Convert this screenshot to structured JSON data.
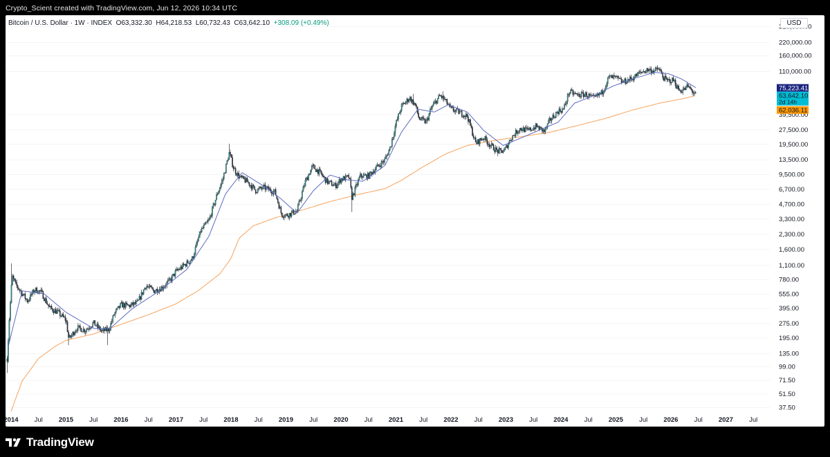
{
  "header": {
    "credit": "Crypto_Scient created with TradingView.com, Jun 12, 2026 10:34 UTC"
  },
  "legend": {
    "symbol": "Bitcoin / U.S. Dollar · 1W · INDEX",
    "open": "O63,332.30",
    "high": "H64,218.53",
    "low": "L60,732.43",
    "close": "C63,642.10",
    "change": "+308.09 (+0.49%)"
  },
  "currency_label": "USD",
  "footer": {
    "brand": "TradingView"
  },
  "colors": {
    "candle_up": "#2a2e39",
    "candle_down": "#2a2e39",
    "candle_up_fill": "#26a69a",
    "ma_blue": "#5c6bc0",
    "ma_orange": "#f7a35c",
    "badge_navy": "#1a237e",
    "badge_cyan": "#00bcd4",
    "badge_orange": "#ff9800"
  },
  "chart_data": {
    "type": "line",
    "series_label": "",
    "y_scale": "log",
    "ylim": [
      32,
      420000
    ],
    "xlim": [
      2013.9,
      2027.8
    ],
    "y_ticks": [
      {
        "v": 320000,
        "label": "320,000.00"
      },
      {
        "v": 220000,
        "label": "220,000.00"
      },
      {
        "v": 160000,
        "label": "160,000.00"
      },
      {
        "v": 110000,
        "label": "110,000.00"
      },
      {
        "v": 39500,
        "label": "39,500.00"
      },
      {
        "v": 27500,
        "label": "27,500.00"
      },
      {
        "v": 19500,
        "label": "19,500.00"
      },
      {
        "v": 13500,
        "label": "13,500.00"
      },
      {
        "v": 9500,
        "label": "9,500.00"
      },
      {
        "v": 6700,
        "label": "6,700.00"
      },
      {
        "v": 4700,
        "label": "4,700.00"
      },
      {
        "v": 3300,
        "label": "3,300.00"
      },
      {
        "v": 2300,
        "label": "2,300.00"
      },
      {
        "v": 1600,
        "label": "1,600.00"
      },
      {
        "v": 1100,
        "label": "1,100.00"
      },
      {
        "v": 780,
        "label": "780.00"
      },
      {
        "v": 555,
        "label": "555.00"
      },
      {
        "v": 395,
        "label": "395.00"
      },
      {
        "v": 275,
        "label": "275.00"
      },
      {
        "v": 195,
        "label": "195.00"
      },
      {
        "v": 135,
        "label": "135.00"
      },
      {
        "v": 99,
        "label": "99.00"
      },
      {
        "v": 71.5,
        "label": "71.50"
      },
      {
        "v": 51.5,
        "label": "51.50"
      },
      {
        "v": 37.5,
        "label": "37.50"
      }
    ],
    "x_ticks": [
      {
        "t": 2014.0,
        "label": "2014",
        "year": true
      },
      {
        "t": 2014.5,
        "label": "Jul",
        "year": false
      },
      {
        "t": 2015.0,
        "label": "2015",
        "year": true
      },
      {
        "t": 2015.5,
        "label": "Jul",
        "year": false
      },
      {
        "t": 2016.0,
        "label": "2016",
        "year": true
      },
      {
        "t": 2016.5,
        "label": "Jul",
        "year": false
      },
      {
        "t": 2017.0,
        "label": "2017",
        "year": true
      },
      {
        "t": 2017.5,
        "label": "Jul",
        "year": false
      },
      {
        "t": 2018.0,
        "label": "2018",
        "year": true
      },
      {
        "t": 2018.5,
        "label": "Jul",
        "year": false
      },
      {
        "t": 2019.0,
        "label": "2019",
        "year": true
      },
      {
        "t": 2019.5,
        "label": "Jul",
        "year": false
      },
      {
        "t": 2020.0,
        "label": "2020",
        "year": true
      },
      {
        "t": 2020.5,
        "label": "Jul",
        "year": false
      },
      {
        "t": 2021.0,
        "label": "2021",
        "year": true
      },
      {
        "t": 2021.5,
        "label": "Jul",
        "year": false
      },
      {
        "t": 2022.0,
        "label": "2022",
        "year": true
      },
      {
        "t": 2022.5,
        "label": "Jul",
        "year": false
      },
      {
        "t": 2023.0,
        "label": "2023",
        "year": true
      },
      {
        "t": 2023.5,
        "label": "Jul",
        "year": false
      },
      {
        "t": 2024.0,
        "label": "2024",
        "year": true
      },
      {
        "t": 2024.5,
        "label": "Jul",
        "year": false
      },
      {
        "t": 2025.0,
        "label": "2025",
        "year": true
      },
      {
        "t": 2025.5,
        "label": "Jul",
        "year": false
      },
      {
        "t": 2026.0,
        "label": "2026",
        "year": true
      },
      {
        "t": 2026.5,
        "label": "Jul",
        "year": false
      },
      {
        "t": 2027.0,
        "label": "2027",
        "year": true
      },
      {
        "t": 2027.5,
        "label": "Jul",
        "year": false
      }
    ],
    "price_anchors": [
      [
        2013.93,
        120
      ],
      [
        2013.97,
        320
      ],
      [
        2014.02,
        850
      ],
      [
        2014.08,
        700
      ],
      [
        2014.17,
        600
      ],
      [
        2014.3,
        470
      ],
      [
        2014.43,
        620
      ],
      [
        2014.55,
        580
      ],
      [
        2014.7,
        400
      ],
      [
        2014.85,
        360
      ],
      [
        2015.0,
        300
      ],
      [
        2015.05,
        190
      ],
      [
        2015.2,
        250
      ],
      [
        2015.35,
        235
      ],
      [
        2015.5,
        280
      ],
      [
        2015.65,
        230
      ],
      [
        2015.78,
        240
      ],
      [
        2015.88,
        350
      ],
      [
        2016.0,
        430
      ],
      [
        2016.15,
        420
      ],
      [
        2016.3,
        450
      ],
      [
        2016.45,
        680
      ],
      [
        2016.6,
        600
      ],
      [
        2016.75,
        650
      ],
      [
        2016.9,
        780
      ],
      [
        2017.0,
        950
      ],
      [
        2017.15,
        1100
      ],
      [
        2017.3,
        1300
      ],
      [
        2017.45,
        2500
      ],
      [
        2017.6,
        3200
      ],
      [
        2017.75,
        6000
      ],
      [
        2017.85,
        8500
      ],
      [
        2017.97,
        16000
      ],
      [
        2018.05,
        11000
      ],
      [
        2018.15,
        9000
      ],
      [
        2018.3,
        8000
      ],
      [
        2018.45,
        6500
      ],
      [
        2018.6,
        7000
      ],
      [
        2018.8,
        6300
      ],
      [
        2018.92,
        3700
      ],
      [
        2019.0,
        3600
      ],
      [
        2019.2,
        4000
      ],
      [
        2019.35,
        8000
      ],
      [
        2019.48,
        11500
      ],
      [
        2019.6,
        10200
      ],
      [
        2019.75,
        8000
      ],
      [
        2019.9,
        7300
      ],
      [
        2020.0,
        8500
      ],
      [
        2020.15,
        9000
      ],
      [
        2020.2,
        5500
      ],
      [
        2020.35,
        9200
      ],
      [
        2020.5,
        9200
      ],
      [
        2020.65,
        11300
      ],
      [
        2020.8,
        13500
      ],
      [
        2020.9,
        18500
      ],
      [
        2021.0,
        32000
      ],
      [
        2021.1,
        48000
      ],
      [
        2021.25,
        59000
      ],
      [
        2021.35,
        50000
      ],
      [
        2021.42,
        36000
      ],
      [
        2021.55,
        33000
      ],
      [
        2021.65,
        47000
      ],
      [
        2021.8,
        62000
      ],
      [
        2021.88,
        57000
      ],
      [
        2022.0,
        45000
      ],
      [
        2022.15,
        42000
      ],
      [
        2022.3,
        38000
      ],
      [
        2022.45,
        20000
      ],
      [
        2022.6,
        23000
      ],
      [
        2022.7,
        19500
      ],
      [
        2022.85,
        16500
      ],
      [
        2022.97,
        16700
      ],
      [
        2023.1,
        23000
      ],
      [
        2023.25,
        28500
      ],
      [
        2023.4,
        27000
      ],
      [
        2023.55,
        30000
      ],
      [
        2023.7,
        26500
      ],
      [
        2023.8,
        34500
      ],
      [
        2023.95,
        43000
      ],
      [
        2024.05,
        45000
      ],
      [
        2024.15,
        68000
      ],
      [
        2024.3,
        63000
      ],
      [
        2024.45,
        64000
      ],
      [
        2024.6,
        58000
      ],
      [
        2024.75,
        67000
      ],
      [
        2024.87,
        96000
      ],
      [
        2025.0,
        95000
      ],
      [
        2025.12,
        85000
      ],
      [
        2025.3,
        94000
      ],
      [
        2025.45,
        108000
      ],
      [
        2025.58,
        115000
      ],
      [
        2025.7,
        112000
      ],
      [
        2025.78,
        118000
      ],
      [
        2025.86,
        96000
      ],
      [
        2025.93,
        88000
      ],
      [
        2026.05,
        90000
      ],
      [
        2026.15,
        70000
      ],
      [
        2026.25,
        72000
      ],
      [
        2026.3,
        78000
      ],
      [
        2026.38,
        70000
      ],
      [
        2026.45,
        63642
      ]
    ],
    "wicks": [
      [
        2013.93,
        85
      ],
      [
        2014.0,
        1150
      ],
      [
        2015.05,
        165
      ],
      [
        2015.75,
        165
      ],
      [
        2017.97,
        19800
      ],
      [
        2020.2,
        3900
      ],
      [
        2021.32,
        64800
      ],
      [
        2021.86,
        69000
      ],
      [
        2022.9,
        15500
      ],
      [
        2025.75,
        126000
      ]
    ],
    "ma_blue_anchors": [
      [
        2013.95,
        160
      ],
      [
        2014.2,
        600
      ],
      [
        2014.6,
        560
      ],
      [
        2015.0,
        360
      ],
      [
        2015.5,
        245
      ],
      [
        2015.8,
        245
      ],
      [
        2016.2,
        390
      ],
      [
        2016.7,
        600
      ],
      [
        2017.2,
        1000
      ],
      [
        2017.6,
        2200
      ],
      [
        2017.9,
        6000
      ],
      [
        2018.2,
        10000
      ],
      [
        2018.6,
        7200
      ],
      [
        2018.9,
        5400
      ],
      [
        2019.2,
        3800
      ],
      [
        2019.5,
        6500
      ],
      [
        2019.8,
        9400
      ],
      [
        2020.1,
        8400
      ],
      [
        2020.4,
        8100
      ],
      [
        2020.8,
        11800
      ],
      [
        2021.1,
        26000
      ],
      [
        2021.4,
        45000
      ],
      [
        2021.7,
        42000
      ],
      [
        2021.95,
        50000
      ],
      [
        2022.3,
        42000
      ],
      [
        2022.6,
        27000
      ],
      [
        2022.95,
        19000
      ],
      [
        2023.3,
        23000
      ],
      [
        2023.65,
        28000
      ],
      [
        2023.95,
        33000
      ],
      [
        2024.25,
        52000
      ],
      [
        2024.6,
        62000
      ],
      [
        2024.95,
        78000
      ],
      [
        2025.3,
        92000
      ],
      [
        2025.7,
        108000
      ],
      [
        2025.95,
        105000
      ],
      [
        2026.2,
        92000
      ],
      [
        2026.45,
        75223
      ]
    ],
    "ma_orange_anchors": [
      [
        2014.0,
        34
      ],
      [
        2014.2,
        70
      ],
      [
        2014.5,
        120
      ],
      [
        2014.8,
        160
      ],
      [
        2015.0,
        185
      ],
      [
        2015.5,
        215
      ],
      [
        2016.0,
        270
      ],
      [
        2016.5,
        340
      ],
      [
        2017.0,
        440
      ],
      [
        2017.4,
        600
      ],
      [
        2017.8,
        900
      ],
      [
        2018.0,
        1300
      ],
      [
        2018.15,
        2100
      ],
      [
        2018.4,
        2800
      ],
      [
        2018.8,
        3400
      ],
      [
        2019.3,
        4100
      ],
      [
        2019.8,
        5000
      ],
      [
        2020.3,
        5900
      ],
      [
        2020.8,
        6800
      ],
      [
        2021.1,
        8300
      ],
      [
        2021.5,
        11500
      ],
      [
        2021.9,
        15500
      ],
      [
        2022.3,
        19000
      ],
      [
        2022.8,
        21500
      ],
      [
        2023.3,
        23500
      ],
      [
        2023.8,
        26000
      ],
      [
        2024.3,
        30500
      ],
      [
        2024.8,
        36000
      ],
      [
        2025.3,
        44000
      ],
      [
        2025.8,
        52000
      ],
      [
        2026.2,
        57500
      ],
      [
        2026.45,
        62036
      ]
    ],
    "price_badges": [
      {
        "v": 75223.41,
        "label": "75,223.41",
        "color": "#1a237e",
        "sub": ""
      },
      {
        "v": 63642.1,
        "label": "63,642.10",
        "color": "#00bcd4",
        "sub": "2d 14h"
      },
      {
        "v": 62036.11,
        "label": "62,036.11",
        "color": "#ff9800",
        "sub": ""
      }
    ]
  }
}
